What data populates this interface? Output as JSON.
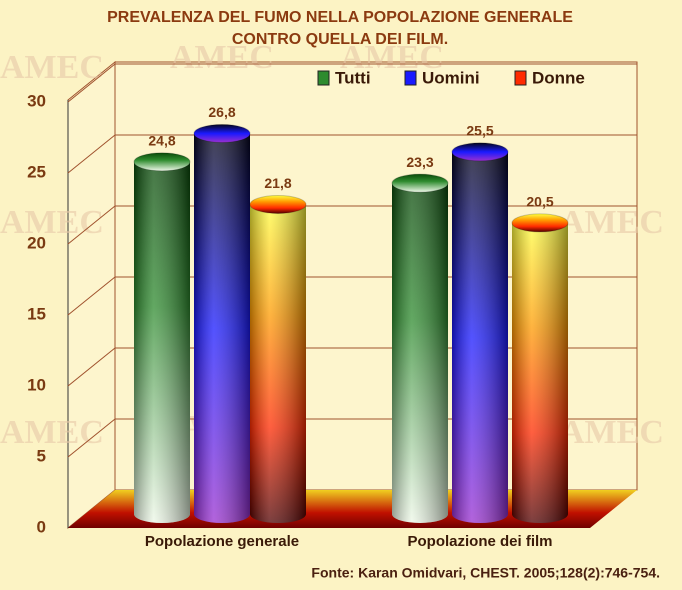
{
  "chart_data": {
    "type": "bar",
    "title": [
      "PREVALENZA DEL FUMO NELLA POPOLAZIONE GENERALE",
      "CONTRO QUELLA DEI FILM."
    ],
    "watermark": "AMEC",
    "categories": [
      "Popolazione generale",
      "Popolazione dei film"
    ],
    "series": [
      {
        "name": "Tutti",
        "color": "#2e8b2e",
        "values": [
          24.8,
          23.3
        ],
        "value_labels": [
          "24,8",
          "23,3"
        ]
      },
      {
        "name": "Uomini",
        "color": "#1a1aff",
        "values": [
          26.8,
          25.5
        ],
        "value_labels": [
          "26,8",
          "25,5"
        ]
      },
      {
        "name": "Donne",
        "color": "#ff2a00",
        "values": [
          21.8,
          20.5
        ],
        "value_labels": [
          "21,8",
          "20,5"
        ]
      }
    ],
    "ylim": [
      0,
      30
    ],
    "yticks": [
      0,
      5,
      10,
      15,
      20,
      25,
      30
    ],
    "grid": true,
    "legend": "top-right",
    "source": "Fonte: Karan Omidvari, CHEST. 2005;128(2):746-754."
  }
}
